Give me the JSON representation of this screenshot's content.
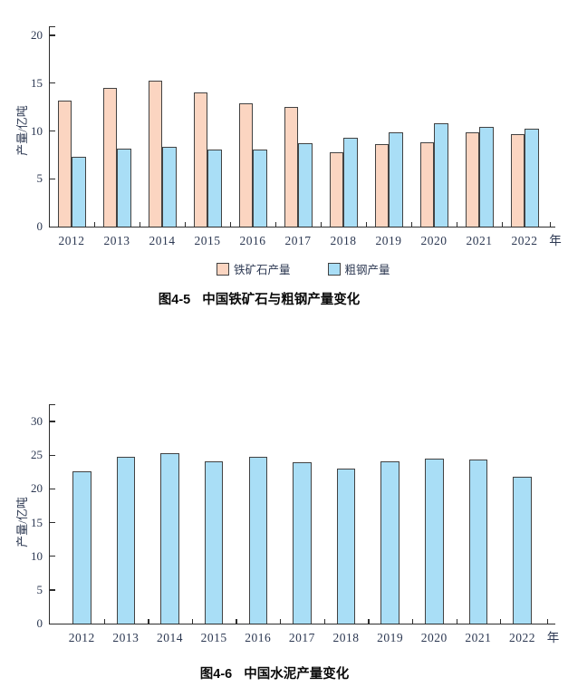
{
  "colors": {
    "iron_ore_fill": "#fbd5c1",
    "crude_steel_fill": "#a9def6",
    "cement_fill": "#a9def6",
    "bar_border": "#424242",
    "axis": "#2d2d2d",
    "tick_text": "#2c3852",
    "caption_text": "#0a0a0a"
  },
  "chart_data": [
    {
      "type": "bar",
      "fig_label": "图4-5",
      "title": "中国铁矿石与粗钢产量变化",
      "ylabel": "产量/亿吨",
      "x_suffix": "年",
      "categories": [
        "2012",
        "2013",
        "2014",
        "2015",
        "2016",
        "2017",
        "2018",
        "2019",
        "2020",
        "2021",
        "2022"
      ],
      "series": [
        {
          "name": "铁矿石产量",
          "color": "#fbd5c1",
          "values": [
            13.2,
            14.5,
            15.3,
            14.0,
            12.9,
            12.5,
            7.8,
            8.6,
            8.8,
            9.9,
            9.7
          ]
        },
        {
          "name": "粗钢产量",
          "color": "#a9def6",
          "values": [
            7.3,
            8.2,
            8.3,
            8.1,
            8.1,
            8.7,
            9.3,
            9.9,
            10.8,
            10.4,
            10.2
          ]
        }
      ],
      "ylim": [
        0,
        20
      ],
      "yticks": [
        0,
        5,
        10,
        15,
        20
      ],
      "grid": false,
      "legend_position": "bottom"
    },
    {
      "type": "bar",
      "fig_label": "图4-6",
      "title": "中国水泥产量变化",
      "ylabel": "产量/亿吨",
      "x_suffix": "年",
      "categories": [
        "2012",
        "2013",
        "2014",
        "2015",
        "2016",
        "2017",
        "2018",
        "2019",
        "2020",
        "2021",
        "2022"
      ],
      "series": [
        {
          "name": "水泥产量",
          "color": "#a9def6",
          "values": [
            22.6,
            24.8,
            25.3,
            24.1,
            24.7,
            23.9,
            23.0,
            24.1,
            24.5,
            24.3,
            21.8
          ]
        }
      ],
      "ylim": [
        0,
        30
      ],
      "yticks": [
        0,
        5,
        10,
        15,
        20,
        25,
        30
      ],
      "grid": false,
      "legend_position": "none"
    }
  ]
}
